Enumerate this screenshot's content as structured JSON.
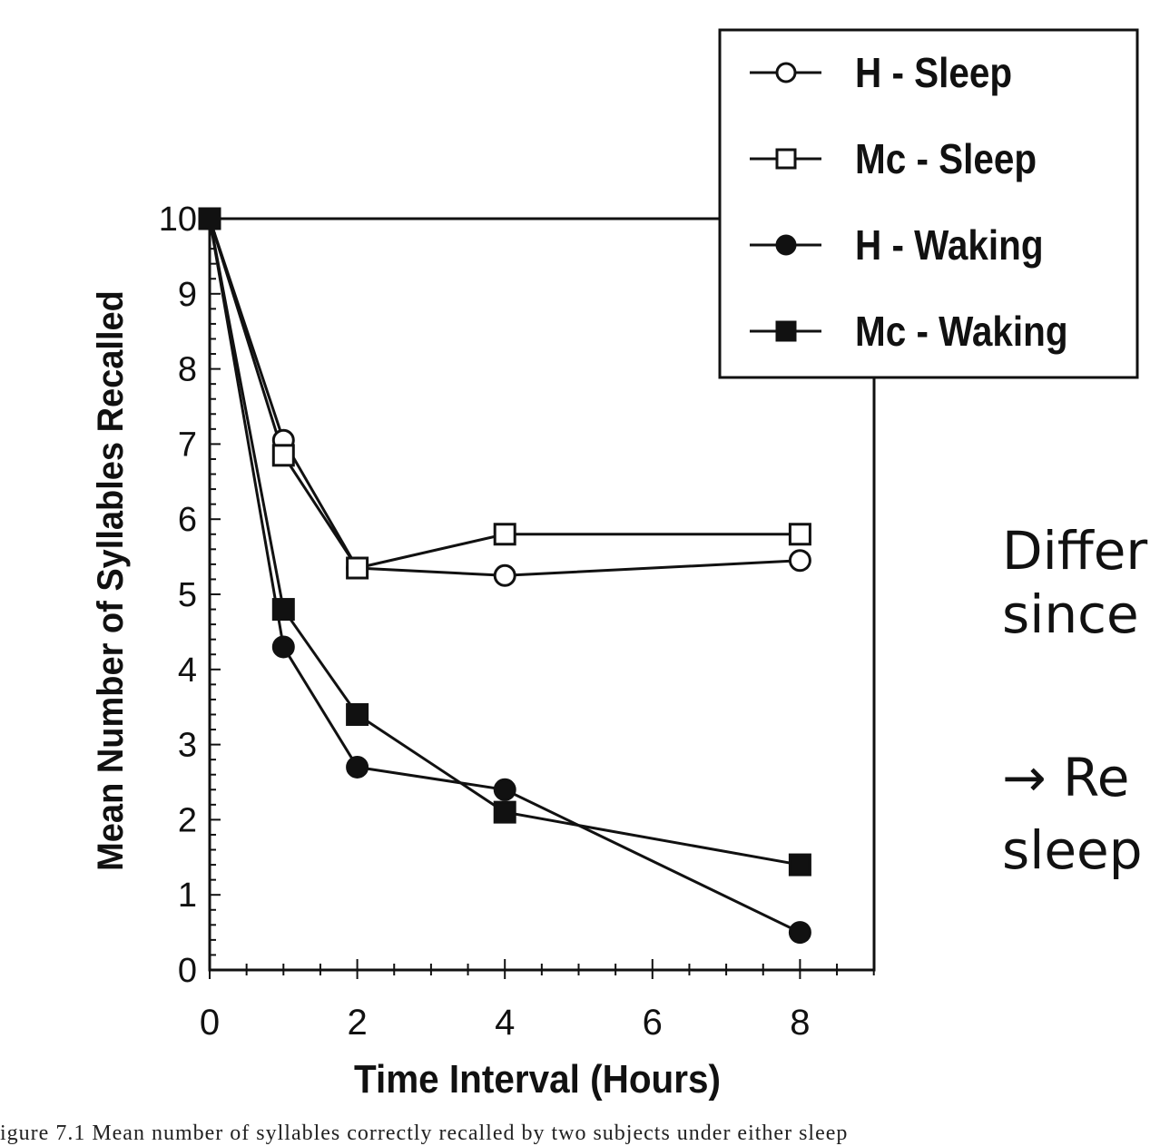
{
  "chart_data": {
    "type": "line",
    "xlabel": "Time Interval (Hours)",
    "ylabel": "Mean Number of Syllables Recalled",
    "xlim": [
      0,
      9
    ],
    "ylim": [
      0,
      10
    ],
    "xticks": [
      0,
      2,
      4,
      6,
      8
    ],
    "yticks": [
      0,
      1,
      2,
      3,
      4,
      5,
      6,
      7,
      8,
      9,
      10
    ],
    "grid": false,
    "legend_position": "top-right",
    "series": [
      {
        "name": "H - Sleep",
        "marker": "circle-open",
        "x": [
          0,
          1,
          2,
          4,
          8
        ],
        "values": [
          10,
          7.05,
          5.35,
          5.25,
          5.45
        ]
      },
      {
        "name": "Mc - Sleep",
        "marker": "square-open",
        "x": [
          0,
          1,
          2,
          4,
          8
        ],
        "values": [
          10,
          6.85,
          5.35,
          5.8,
          5.8
        ]
      },
      {
        "name": "H - Waking",
        "marker": "circle-filled",
        "x": [
          0,
          1,
          2,
          4,
          8
        ],
        "values": [
          10,
          4.3,
          2.7,
          2.4,
          0.5
        ]
      },
      {
        "name": "Mc - Waking",
        "marker": "square-filled",
        "x": [
          0,
          1,
          2,
          4,
          8
        ],
        "values": [
          10,
          4.8,
          3.4,
          2.1,
          1.4
        ]
      }
    ]
  },
  "slide_text": {
    "line1": "Differ",
    "line2": "since",
    "line3_arrow": "→",
    "line3": "Re",
    "line4": "sleep"
  },
  "caption": "igure 7.1   Mean number of syllables correctly recalled by two subjects under either sleep"
}
